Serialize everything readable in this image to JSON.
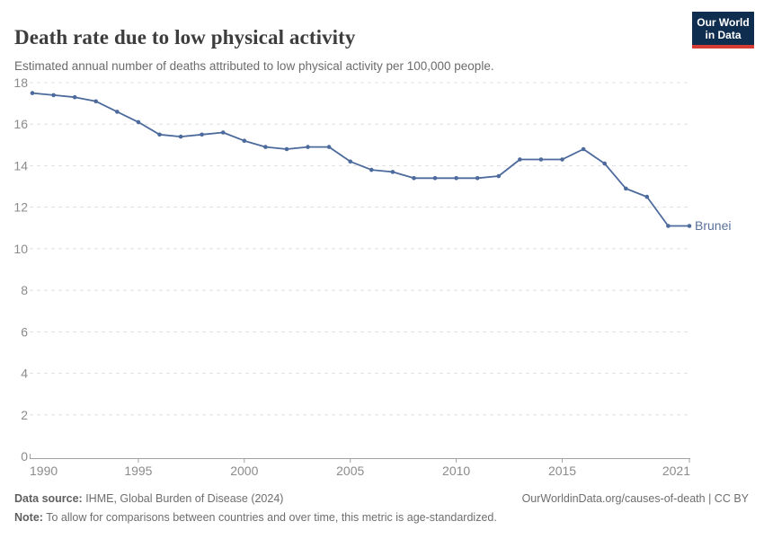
{
  "header": {
    "title": "Death rate due to low physical activity",
    "subtitle": "Estimated annual number of deaths attributed to low physical activity per 100,000 people.",
    "logo": {
      "line1": "Our World",
      "line2": "in Data"
    }
  },
  "chart_data": {
    "type": "line",
    "title": "Death rate due to low physical activity",
    "x": [
      1990,
      1991,
      1992,
      1993,
      1994,
      1995,
      1996,
      1997,
      1998,
      1999,
      2000,
      2001,
      2002,
      2003,
      2004,
      2005,
      2006,
      2007,
      2008,
      2009,
      2010,
      2011,
      2012,
      2013,
      2014,
      2015,
      2016,
      2017,
      2018,
      2019,
      2020,
      2021
    ],
    "series": [
      {
        "name": "Brunei",
        "values": [
          17.5,
          17.4,
          17.3,
          17.1,
          16.6,
          16.1,
          15.5,
          15.4,
          15.5,
          15.6,
          15.2,
          14.9,
          14.8,
          14.9,
          14.9,
          14.2,
          13.8,
          13.7,
          13.4,
          13.4,
          13.4,
          13.4,
          13.5,
          14.3,
          14.3,
          14.3,
          14.8,
          14.1,
          12.9,
          12.5,
          11.1,
          11.1
        ]
      }
    ],
    "end_label": "Brunei",
    "xlabel": "",
    "ylabel": "",
    "ylim": [
      0,
      18
    ],
    "yticks": [
      0,
      2,
      4,
      6,
      8,
      10,
      12,
      14,
      16,
      18
    ],
    "xticks": [
      1990,
      1995,
      2000,
      2005,
      2010,
      2015,
      2021
    ],
    "grid": "horizontal-dashed",
    "legend_position": "end-of-line"
  },
  "colors": {
    "line": "#4c6a9c",
    "end_label": "#5b7199",
    "gridline": "#e0e0e0",
    "axis": "#a1a1a1",
    "tick_label": "#8b8b8b"
  },
  "footer": {
    "source_label": "Data source:",
    "source_text": " IHME, Global Burden of Disease (2024)",
    "link_text": "OurWorldinData.org/causes-of-death | CC BY",
    "note_label": "Note:",
    "note_text": " To allow for comparisons between countries and over time, this metric is age-standardized."
  }
}
